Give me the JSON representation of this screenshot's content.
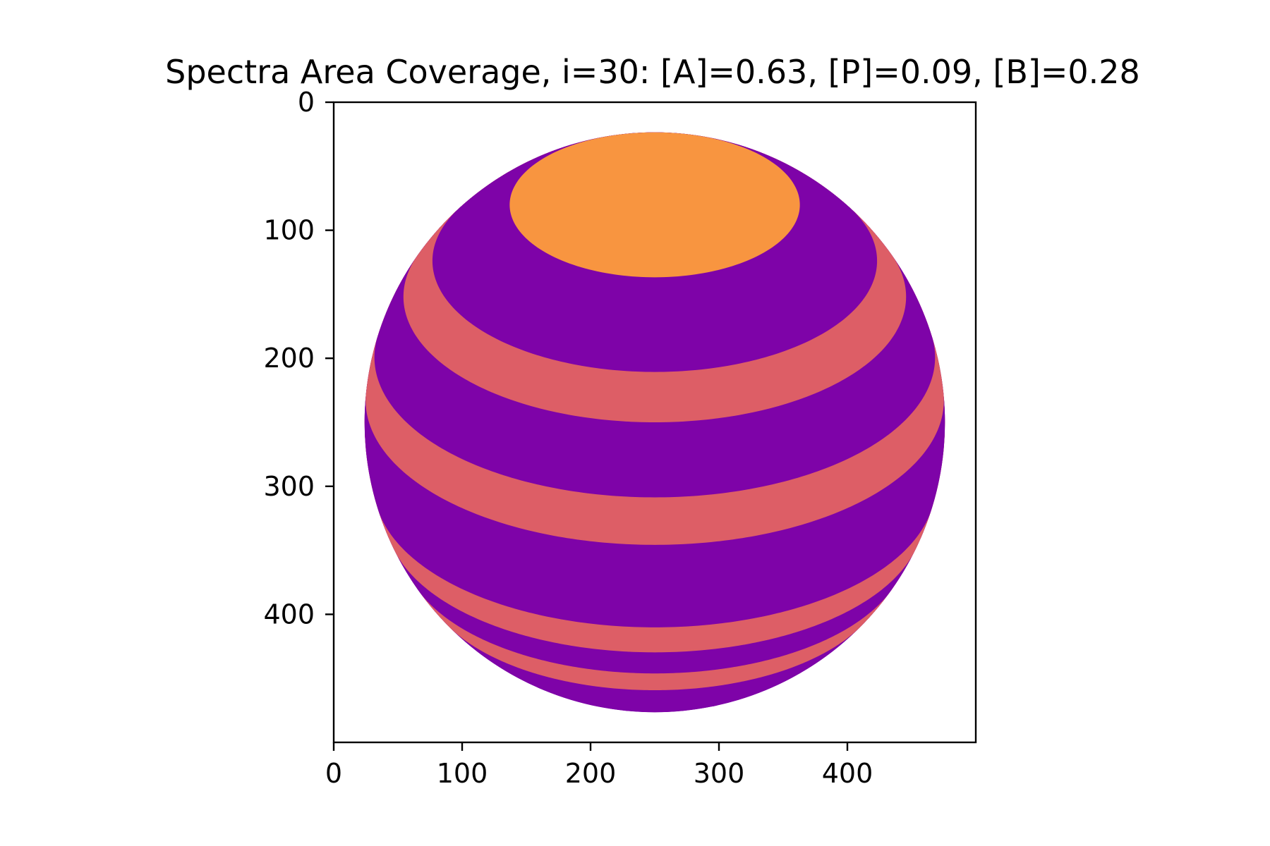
{
  "chart_data": {
    "type": "heatmap",
    "title": "Spectra Area Coverage, i=30: [A]=0.63, [P]=0.09, [B]=0.28",
    "xlabel": "",
    "ylabel": "",
    "image_size": [
      500,
      500
    ],
    "xlim": [
      0,
      500
    ],
    "ylim": [
      500,
      0
    ],
    "y_axis_inverted": true,
    "grid": false,
    "x_ticks": [
      0,
      100,
      200,
      300,
      400
    ],
    "y_ticks": [
      0,
      100,
      200,
      300,
      400
    ],
    "x_tick_labels": [
      "0",
      "100",
      "200",
      "300",
      "400"
    ],
    "y_tick_labels": [
      "0",
      "100",
      "200",
      "300",
      "400"
    ],
    "coverage": {
      "A": 0.63,
      "P": 0.09,
      "B": 0.28
    },
    "inclination_deg": 30,
    "disk": {
      "center": [
        250,
        250
      ],
      "radius": 226
    },
    "band_colors": {
      "A": "#7e03a8",
      "B": "#dd5e66",
      "P": "#f89540"
    },
    "band_latitude_edges_deg": [
      90,
      60,
      40,
      30,
      15,
      5,
      -15,
      -22.5,
      -30,
      -37.5,
      -90
    ],
    "band_labels": [
      "P",
      "A",
      "B",
      "A",
      "B",
      "A",
      "B",
      "A",
      "B",
      "A"
    ]
  }
}
